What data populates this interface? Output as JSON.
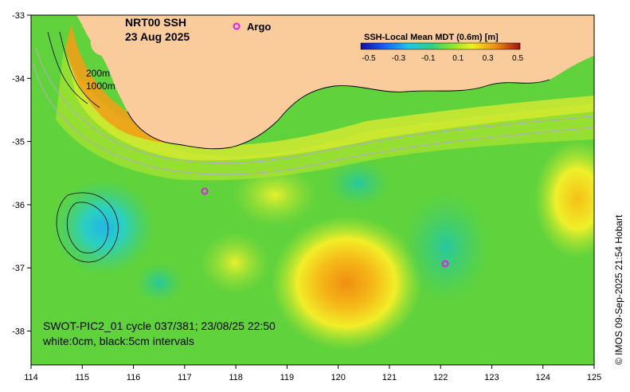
{
  "map": {
    "title_line1": "NRT00 SSH",
    "title_line2": "23 Aug 2025",
    "legend_argo": "Argo",
    "colorbar_title": "SSH-Local Mean MDT (0.6m) [m]",
    "colorbar_ticks": [
      "-0.5",
      "-0.3",
      "-0.1",
      "0.1",
      "0.3",
      "0.5"
    ],
    "depth_label_1": "200m",
    "depth_label_2": "1000m",
    "swot_caption_line1": "SWOT-PIC2_01 cycle 037/381; 23/08/25 22:50",
    "swot_caption_line2": "white:0cm, black:5cm intervals",
    "credit": "© IMOS 09-Sep-2025 21:54 Hobart",
    "x_ticks": [
      "114",
      "115",
      "116",
      "117",
      "118",
      "119",
      "120",
      "121",
      "122",
      "123",
      "124",
      "125"
    ],
    "y_ticks": [
      "-33",
      "-34",
      "-35",
      "-36",
      "-37",
      "-38"
    ],
    "colors": {
      "land": "#fbcc9b",
      "background_field": "#5fd23c",
      "argo_marker": "#e020e0"
    }
  }
}
